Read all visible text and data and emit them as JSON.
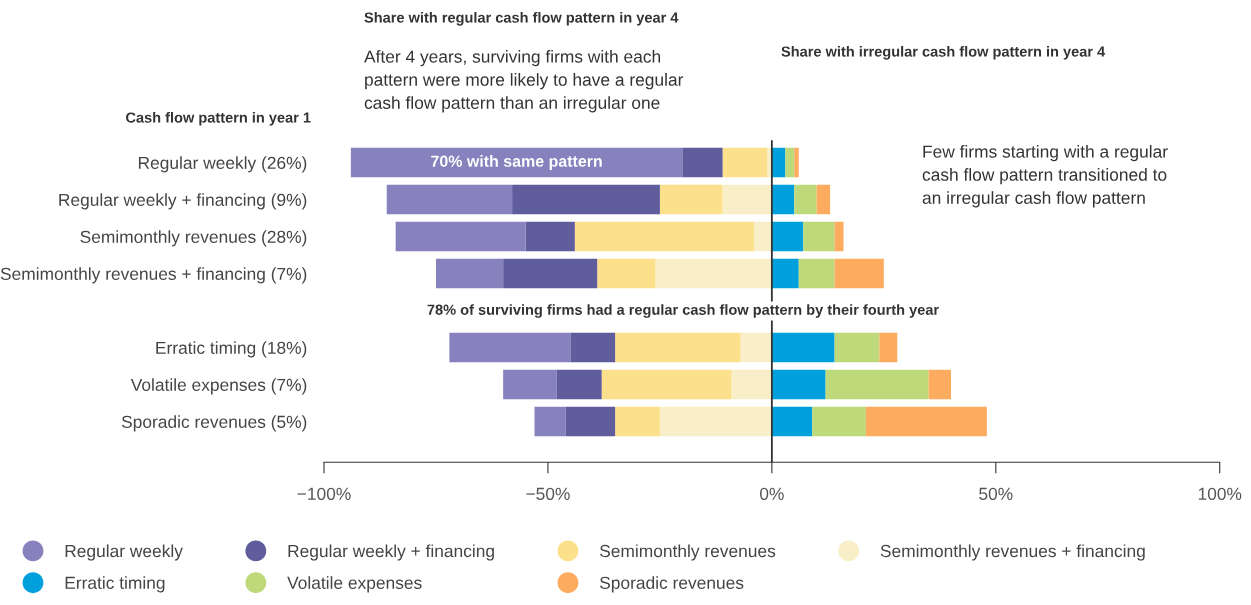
{
  "chart_data": {
    "type": "bar",
    "orientation": "horizontal",
    "stacked": true,
    "categories": [
      "Regular weekly (26%)",
      "Regular weekly + financing (9%)",
      "Semimonthly revenues (28%)",
      "Semimonthly revenues + financing (7%)",
      null,
      "Erratic timing (18%)",
      "Volatile expenses (7%)",
      "Sporadic revenues (5%)"
    ],
    "series": [
      {
        "name": "Semimonthly revenues + financing",
        "color": "#f8efc8",
        "values": [
          -1,
          -11,
          -4,
          -26,
          null,
          -7,
          -9,
          -25
        ]
      },
      {
        "name": "Semimonthly revenues",
        "color": "#fde08c",
        "values": [
          -10,
          -14,
          -40,
          -13,
          null,
          -28,
          -29,
          -10
        ]
      },
      {
        "name": "Regular weekly + financing",
        "color": "#5f5d9c",
        "values": [
          -9,
          -33,
          -11,
          -21,
          null,
          -10,
          -10,
          -11
        ]
      },
      {
        "name": "Regular weekly",
        "color": "#8781bd",
        "values": [
          -74,
          -28,
          -29,
          -15,
          null,
          -27,
          -12,
          -7
        ]
      },
      {
        "name": "Erratic timing",
        "color": "#00a0dd",
        "values": [
          3,
          5,
          7,
          6,
          null,
          14,
          12,
          9
        ]
      },
      {
        "name": "Volatile expenses",
        "color": "#bdd97a",
        "values": [
          2,
          5,
          7,
          8,
          null,
          10,
          23,
          12
        ]
      },
      {
        "name": "Sporadic revenues",
        "color": "#fdab5e",
        "values": [
          1,
          3,
          2,
          11,
          null,
          4,
          5,
          27
        ]
      }
    ],
    "xlim": [
      -100,
      100
    ],
    "xticks": [
      {
        "value": -100,
        "label": "−100%"
      },
      {
        "value": -50,
        "label": "−50%"
      },
      {
        "value": 0,
        "label": "0%"
      },
      {
        "value": 50,
        "label": "50%"
      },
      {
        "value": 100,
        "label": "100%"
      }
    ],
    "ref_lines": [
      {
        "axis": "x",
        "value": 0,
        "color": "#333333"
      }
    ],
    "annotations": [
      "Share with regular cash flow pattern in year 4",
      "After 4 years, surviving firms with each\npattern were more likely to have a regular\ncash flow pattern than an irregular one",
      "Share with irregular cash flow pattern in year 4",
      "Cash flow pattern in year 1",
      {
        "text": "70% with same pattern",
        "x": -57,
        "y": "Regular weekly (26%)"
      },
      "Few firms starting with a regular\ncash flow pattern transitioned to\nan irregular cash flow pattern",
      "78% of surviving firms had a regular cash flow pattern by their fourth year"
    ],
    "grid": false,
    "legend": "bottom"
  }
}
